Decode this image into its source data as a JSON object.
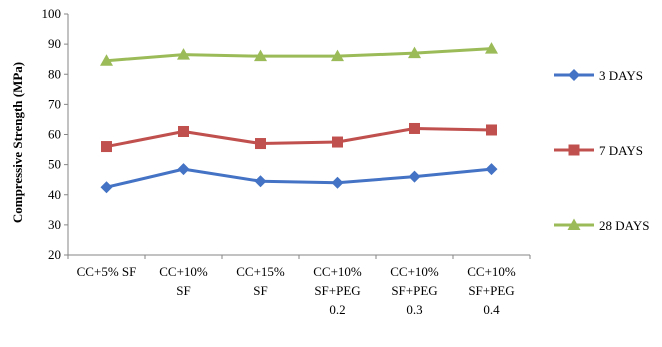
{
  "chart_data": {
    "type": "line",
    "title": "",
    "xlabel": "",
    "ylabel": "Compressive Strength (MPa)",
    "ylim": [
      20,
      100
    ],
    "yticks": [
      20,
      30,
      40,
      50,
      60,
      70,
      80,
      90,
      100
    ],
    "grid": false,
    "legend_position": "right",
    "categories": [
      [
        "CC+5% SF"
      ],
      [
        "CC+10%",
        "SF"
      ],
      [
        "CC+15%",
        "SF"
      ],
      [
        "CC+10%",
        "SF+PEG",
        "0.2"
      ],
      [
        "CC+10%",
        "SF+PEG",
        "0.3"
      ],
      [
        "CC+10%",
        "SF+PEG",
        "0.4"
      ]
    ],
    "series": [
      {
        "name": "3 DAYS",
        "color": "#4472C4",
        "marker": "diamond",
        "values": [
          42.5,
          48.5,
          44.5,
          44.0,
          46.0,
          48.5
        ]
      },
      {
        "name": "7 DAYS",
        "color": "#C0504D",
        "marker": "square",
        "values": [
          56.0,
          61.0,
          57.0,
          57.5,
          62.0,
          61.5
        ]
      },
      {
        "name": "28 DAYS",
        "color": "#9BBB59",
        "marker": "triangle",
        "values": [
          84.5,
          86.5,
          86.0,
          86.0,
          87.0,
          88.5
        ]
      }
    ]
  }
}
